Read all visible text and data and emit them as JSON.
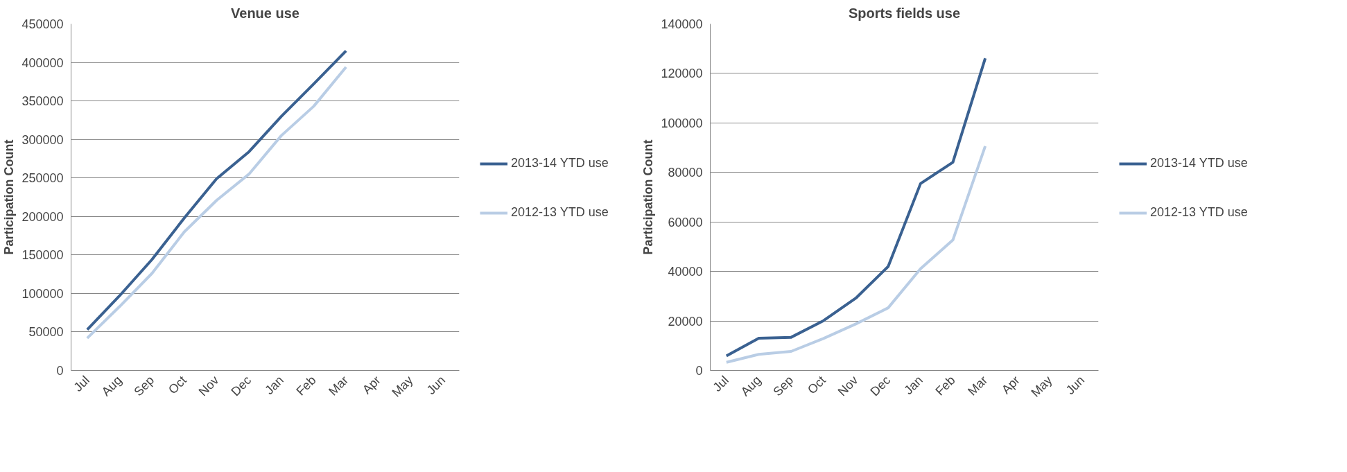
{
  "chart_data": [
    {
      "type": "line",
      "title": "Venue use",
      "ylabel": "Participation Count",
      "categories": [
        "Jul",
        "Aug",
        "Sep",
        "Oct",
        "Nov",
        "Dec",
        "Jan",
        "Feb",
        "Mar",
        "Apr",
        "May",
        "Jun"
      ],
      "ylim": [
        0,
        450000
      ],
      "yticks": [
        0,
        50000,
        100000,
        150000,
        200000,
        250000,
        300000,
        350000,
        400000,
        450000
      ],
      "grid": "y",
      "legend": "right",
      "line_style": "solid",
      "series": [
        {
          "name": "2013-14 YTD use",
          "color": "#3a6191",
          "values": [
            53000,
            97000,
            144000,
            198000,
            249000,
            284000,
            330000,
            372000,
            415000,
            null,
            null,
            null
          ]
        },
        {
          "name": "2012-13 YTD use",
          "color": "#b9cde5",
          "values": [
            42000,
            83000,
            126000,
            180000,
            221000,
            255000,
            305000,
            343000,
            394000,
            null,
            null,
            null
          ]
        }
      ]
    },
    {
      "type": "line",
      "title": "Sports fields use",
      "ylabel": "Participation Count",
      "categories": [
        "Jul",
        "Aug",
        "Sep",
        "Oct",
        "Nov",
        "Dec",
        "Jan",
        "Feb",
        "Mar",
        "Apr",
        "May",
        "Jun"
      ],
      "ylim": [
        0,
        140000
      ],
      "yticks": [
        0,
        20000,
        40000,
        60000,
        80000,
        100000,
        120000,
        140000
      ],
      "grid": "y",
      "legend": "right",
      "line_style": "solid",
      "series": [
        {
          "name": "2013-14 YTD use",
          "color": "#3a6191",
          "values": [
            5900,
            13000,
            13400,
            20100,
            29200,
            42000,
            75500,
            84100,
            126100,
            null,
            null,
            null
          ]
        },
        {
          "name": "2012-13 YTD use",
          "color": "#b9cde5",
          "values": [
            3300,
            6500,
            7700,
            12900,
            18800,
            25300,
            41100,
            52700,
            90600,
            null,
            null,
            null
          ]
        }
      ]
    }
  ]
}
